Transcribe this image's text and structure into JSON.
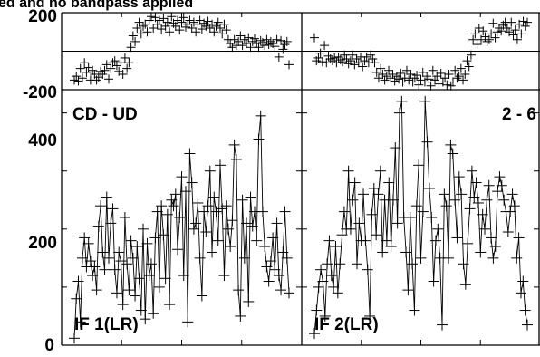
{
  "header_text": "ed and no bandpass applied",
  "chart_data": {
    "type": "line",
    "marker": "plus",
    "color": "#000000",
    "phase_axis": {
      "ylim": [
        -200,
        200
      ],
      "ticks": [
        "200",
        "-200"
      ]
    },
    "amp_axis": {
      "ylim": [
        0,
        440
      ],
      "ticks": [
        "400",
        "200",
        "0"
      ]
    },
    "panels": [
      {
        "baseline": "CD - UD",
        "if_label": "IF 1(LR)",
        "amplitude": [
          12,
          80,
          110,
          40,
          150,
          185,
          135,
          175,
          145,
          120,
          135,
          95,
          205,
          240,
          160,
          130,
          255,
          150,
          210,
          235,
          130,
          90,
          160,
          145,
          70,
          220,
          140,
          95,
          180,
          150,
          85,
          170,
          115,
          60,
          200,
          45,
          175,
          120,
          140,
          55,
          185,
          230,
          100,
          240,
          190,
          115,
          225,
          70,
          250,
          240,
          260,
          165,
          220,
          290,
          120,
          265,
          40,
          330,
          280,
          200,
          210,
          245,
          150,
          85,
          230,
          195,
          240,
          300,
          160,
          255,
          230,
          180,
          310,
          235,
          120,
          240,
          200,
          170,
          215,
          345,
          320,
          95,
          50,
          250,
          150,
          210,
          75,
          255,
          205,
          230,
          180,
          355,
          395,
          230,
          170,
          135,
          110,
          145,
          185,
          130,
          210,
          120,
          95,
          160,
          230,
          150,
          90
        ],
        "phase": [
          -150,
          -130,
          -155,
          -90,
          -140,
          -60,
          -110,
          -85,
          -150,
          -100,
          -120,
          -150,
          -135,
          -105,
          -120,
          -100,
          -70,
          -145,
          -90,
          -60,
          -50,
          -75,
          -105,
          -60,
          -120,
          -35,
          -90,
          -60,
          20,
          80,
          50,
          120,
          150,
          90,
          130,
          140,
          100,
          160,
          180,
          120,
          175,
          140,
          160,
          115,
          170,
          130,
          150,
          100,
          180,
          145,
          130,
          160,
          110,
          150,
          175,
          125,
          140,
          160,
          120,
          150,
          100,
          140,
          160,
          115,
          145,
          130,
          155,
          120,
          140,
          100,
          130,
          150,
          120,
          90,
          140,
          110,
          60,
          40,
          20,
          60,
          30,
          50,
          80,
          30,
          60,
          40,
          70,
          20,
          50,
          65,
          40,
          20,
          55,
          45,
          30,
          60,
          35,
          50,
          40,
          25,
          60,
          -30,
          55,
          10,
          35,
          50,
          -70
        ]
      },
      {
        "baseline": "2 - 6",
        "if_label": "IF 2(LR)",
        "amplitude": [
          20,
          60,
          100,
          130,
          110,
          50,
          140,
          180,
          120,
          100,
          170,
          90,
          140,
          190,
          230,
          200,
          300,
          200,
          250,
          280,
          140,
          210,
          180,
          260,
          180,
          130,
          50,
          225,
          270,
          190,
          260,
          300,
          160,
          250,
          180,
          280,
          170,
          250,
          340,
          210,
          400,
          420,
          220,
          160,
          95,
          220,
          140,
          60,
          240,
          310,
          150,
          230,
          420,
          350,
          270,
          220,
          110,
          180,
          200,
          150,
          35,
          260,
          240,
          150,
          345,
          330,
          250,
          185,
          290,
          260,
          140,
          105,
          175,
          235,
          300,
          255,
          280,
          245,
          160,
          225,
          200,
          250,
          275,
          185,
          150,
          170,
          265,
          290,
          275,
          250,
          230,
          195,
          230,
          260,
          240,
          150,
          185,
          90,
          110,
          60,
          35
        ]
      }
    ]
  }
}
